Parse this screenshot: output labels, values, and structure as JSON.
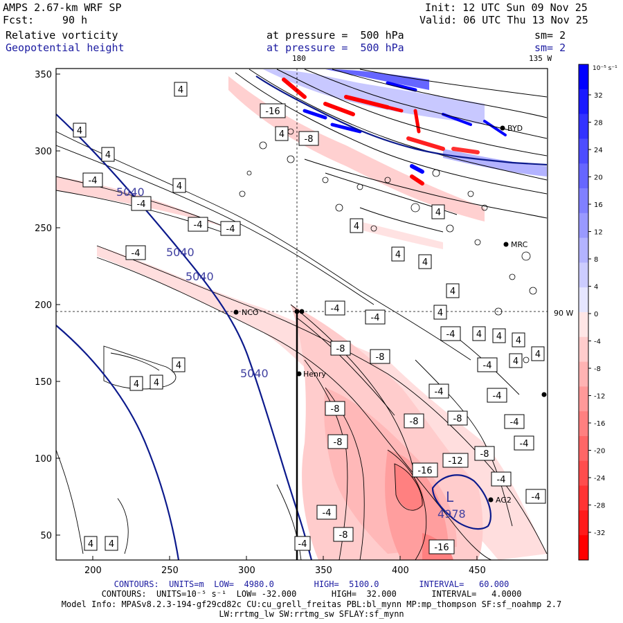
{
  "header": {
    "model": "AMPS 2.67-km WRF SP",
    "fcst_label": "Fcst:",
    "fcst_value": "90 h",
    "init": "Init: 12 UTC Sun 09 Nov 25",
    "valid": "Valid: 06 UTC Thu 13 Nov 25",
    "field1": "Relative vorticity",
    "field2": "Geopotential height",
    "pressure1": "at pressure =  500 hPa",
    "pressure2": "at pressure =  500 hPa",
    "sm1": "sm= 2",
    "sm2": "sm= 2",
    "lon_top_180": "180",
    "lon_top_135": "135 W",
    "lon_right_90": "90 W"
  },
  "colorbar": {
    "unit_label": "10⁻⁵ s⁻¹",
    "ticks": [
      "32",
      "28",
      "24",
      "20",
      "16",
      "12",
      "8",
      "4",
      "0",
      "-4",
      "-8",
      "-12",
      "-16",
      "-20",
      "-24",
      "-28",
      "-32"
    ],
    "colors": [
      "#0000ff",
      "#1a1aff",
      "#3333ff",
      "#4d4dff",
      "#6666ff",
      "#8080ff",
      "#9999ff",
      "#b3b3ff",
      "#ccccff",
      "#e6e6ff",
      "#ffe6e6",
      "#ffcccc",
      "#ffb3b3",
      "#ff9999",
      "#ff8080",
      "#ff6666",
      "#ff4d4d",
      "#ff3333",
      "#ff1a1a",
      "#ff0000"
    ]
  },
  "axes": {
    "x_ticks": [
      "200",
      "250",
      "300",
      "350",
      "400",
      "450"
    ],
    "y_ticks": [
      "350",
      "300",
      "250",
      "200",
      "150",
      "100",
      "50"
    ]
  },
  "stations": {
    "nco": "NCO",
    "henry": "Henry",
    "ag2": "AG2",
    "mrc": "MRC",
    "byrd": "BYD"
  },
  "height_labels": [
    "5040",
    "5040",
    "5040",
    "5040"
  ],
  "low": {
    "symbol": "L",
    "value": "4978"
  },
  "vort_labels": [
    "4",
    "4",
    "4",
    "4",
    "4",
    "4",
    "4",
    "4",
    "4",
    "4",
    "4",
    "4",
    "4",
    "4",
    "4",
    "4",
    "4",
    "4",
    "4",
    "-4",
    "-4",
    "-4",
    "-4",
    "-4",
    "-4",
    "-4",
    "-4",
    "-4",
    "-4",
    "-4",
    "-4",
    "-4",
    "-4",
    "-4",
    "-4",
    "-8",
    "-8",
    "-8",
    "-8",
    "-8",
    "-8",
    "-8",
    "-8",
    "-12",
    "-16",
    "-16",
    "-16",
    "-8",
    "-4"
  ],
  "footer": {
    "contours1": "CONTOURS:  UNITS=m  LOW=  4980.0        HIGH=  5100.0        INTERVAL=   60.000",
    "contours2": "CONTOURS:  UNITS=10⁻⁵ s⁻¹  LOW= -32.000       HIGH=  32.000       INTERVAL=   4.0000",
    "model_info": "Model Info: MPASv8.2.3-194-gf29cd82c CU:cu_grell_freitas PBL:bl_mynn MP:mp_thompson SF:sf_noahmp 2.7",
    "model_info2": "LW:rrtmg_lw SW:rrtmg_sw SFLAY:sf_mynn"
  }
}
